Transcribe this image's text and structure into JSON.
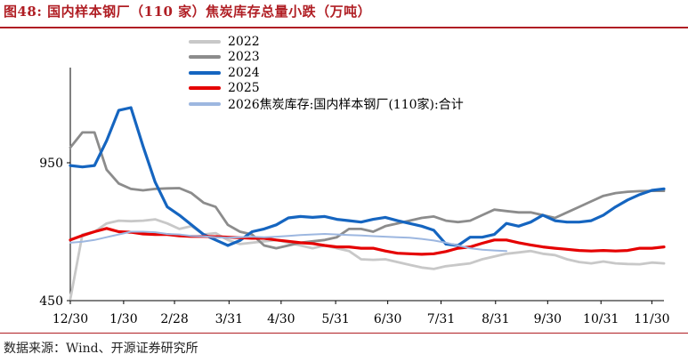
{
  "title": "图48:  国内样本钢厂（110 家）焦炭库存总量小跌（万吨）",
  "source": "数据来源：Wind、开源证券研究所",
  "chart_data": {
    "type": "line",
    "title": "",
    "xlabel": "",
    "ylabel": "",
    "ylim": [
      450,
      1200
    ],
    "yticks": [
      450,
      950
    ],
    "xlim": [
      0,
      48
    ],
    "xticks": [
      {
        "label": "12/30",
        "x": 0
      },
      {
        "label": "1/30",
        "x": 4.4
      },
      {
        "label": "2/28",
        "x": 8.6
      },
      {
        "label": "3/31",
        "x": 13.1
      },
      {
        "label": "4/30",
        "x": 17.4
      },
      {
        "label": "5/31",
        "x": 21.9
      },
      {
        "label": "6/30",
        "x": 26.2
      },
      {
        "label": "7/31",
        "x": 30.6
      },
      {
        "label": "8/31",
        "x": 35.1
      },
      {
        "label": "9/30",
        "x": 39.4
      },
      {
        "label": "10/31",
        "x": 43.8
      },
      {
        "label": "11/30",
        "x": 48.0
      }
    ],
    "legend_title": "焦炭库存:国内样本钢厂(110家):合计",
    "series": [
      {
        "name": "2022",
        "color": "#c8c8c8",
        "x": [
          0,
          1,
          2,
          3,
          4,
          5,
          6,
          7,
          8,
          9,
          10,
          11,
          12,
          13,
          14,
          15,
          16,
          17,
          18,
          19,
          20,
          21,
          22,
          23,
          24,
          25,
          26,
          27,
          28,
          29,
          30,
          31,
          32,
          33,
          34,
          35,
          36,
          37,
          38,
          39,
          40,
          41,
          42,
          43,
          44,
          45,
          46,
          47,
          48,
          49
        ],
        "values": [
          455,
          690,
          700,
          730,
          740,
          738,
          740,
          745,
          730,
          710,
          720,
          690,
          695,
          670,
          655,
          660,
          665,
          670,
          660,
          650,
          640,
          650,
          640,
          630,
          600,
          598,
          600,
          590,
          580,
          570,
          565,
          575,
          580,
          585,
          600,
          610,
          620,
          625,
          630,
          620,
          615,
          600,
          590,
          585,
          592,
          585,
          583,
          582,
          588,
          585
        ]
      },
      {
        "name": "2023",
        "color": "#8c8c8c",
        "x": [
          0,
          1,
          2,
          3,
          4,
          5,
          6,
          7,
          8,
          9,
          10,
          11,
          12,
          13,
          14,
          15,
          16,
          17,
          18,
          19,
          20,
          21,
          22,
          23,
          24,
          25,
          26,
          27,
          28,
          29,
          30,
          31,
          32,
          33,
          34,
          35,
          36,
          37,
          38,
          39,
          40,
          41,
          42,
          43,
          44,
          45,
          46,
          47,
          48,
          49
        ],
        "values": [
          1005,
          1060,
          1060,
          925,
          875,
          855,
          850,
          855,
          857,
          858,
          840,
          805,
          790,
          725,
          700,
          690,
          650,
          640,
          650,
          660,
          665,
          670,
          680,
          710,
          710,
          700,
          720,
          730,
          740,
          750,
          755,
          740,
          735,
          740,
          760,
          780,
          775,
          770,
          770,
          760,
          750,
          770,
          790,
          810,
          830,
          840,
          845,
          847,
          848,
          848
        ]
      },
      {
        "name": "2024",
        "color": "#1565c0",
        "x": [
          0,
          1,
          2,
          3,
          4,
          5,
          6,
          7,
          8,
          9,
          10,
          11,
          12,
          13,
          14,
          15,
          16,
          17,
          18,
          19,
          20,
          21,
          22,
          23,
          24,
          25,
          26,
          27,
          28,
          29,
          30,
          31,
          32,
          33,
          34,
          35,
          36,
          37,
          38,
          39,
          40,
          41,
          42,
          43,
          44,
          45,
          46,
          47,
          48,
          49
        ],
        "values": [
          940,
          935,
          940,
          1030,
          1140,
          1150,
          1010,
          880,
          790,
          760,
          725,
          690,
          670,
          650,
          668,
          700,
          710,
          725,
          750,
          755,
          752,
          755,
          745,
          740,
          735,
          745,
          752,
          740,
          730,
          720,
          705,
          655,
          650,
          680,
          680,
          690,
          730,
          720,
          735,
          760,
          740,
          735,
          735,
          740,
          760,
          790,
          815,
          835,
          850,
          855
        ]
      },
      {
        "name": "2025",
        "color": "#e50000",
        "x": [
          0,
          1,
          2,
          3,
          4,
          5,
          6,
          7,
          8,
          9,
          10,
          11,
          12,
          13,
          14,
          15,
          16,
          17,
          18,
          19,
          20,
          21,
          22,
          23,
          24,
          25,
          26,
          27,
          28,
          29,
          30,
          31,
          32,
          33,
          34,
          35,
          36,
          37,
          38,
          39,
          40,
          41,
          42,
          43,
          44,
          45,
          46,
          47,
          48,
          49
        ],
        "values": [
          670,
          686,
          700,
          712,
          700,
          698,
          692,
          690,
          690,
          685,
          683,
          683,
          682,
          680,
          678,
          676,
          676,
          670,
          665,
          660,
          657,
          650,
          645,
          645,
          640,
          640,
          630,
          622,
          620,
          618,
          620,
          628,
          640,
          645,
          658,
          670,
          670,
          660,
          652,
          645,
          640,
          636,
          632,
          630,
          632,
          630,
          632,
          640,
          640,
          645
        ]
      },
      {
        "name": "2026",
        "color": "#9db7e0",
        "x": [
          0,
          1,
          2,
          3,
          4,
          5,
          6,
          7,
          8,
          9,
          10,
          11,
          12,
          13,
          14,
          15,
          16,
          17,
          18,
          19,
          20,
          21,
          22,
          23,
          24,
          25,
          26,
          27,
          28,
          29,
          30,
          31,
          32,
          33,
          34,
          35,
          36
        ],
        "values": [
          660,
          664,
          670,
          680,
          690,
          700,
          700,
          698,
          692,
          690,
          685,
          683,
          680,
          678,
          680,
          682,
          680,
          682,
          685,
          688,
          690,
          692,
          690,
          688,
          686,
          684,
          682,
          680,
          678,
          674,
          668,
          660,
          650,
          640,
          635,
          632,
          630
        ]
      }
    ],
    "grid": false,
    "legend_position": "top-center"
  }
}
